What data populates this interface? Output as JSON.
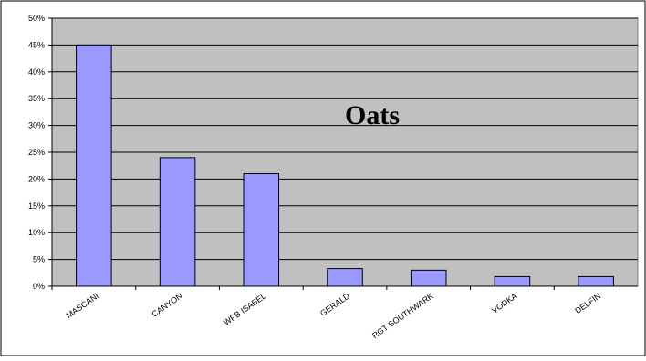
{
  "chart_data": {
    "type": "bar",
    "title": "Oats",
    "xlabel": "",
    "ylabel": "",
    "categories": [
      "MASCANI",
      "CANYON",
      "WPB ISABEL",
      "GERALD",
      "RGT SOUTHWARK",
      "VODKA",
      "DELFIN"
    ],
    "values": [
      45,
      24,
      21,
      3.3,
      3,
      1.8,
      1.8
    ],
    "ylim": [
      0,
      50
    ],
    "yticks": [
      "0%",
      "5%",
      "10%",
      "15%",
      "20%",
      "25%",
      "30%",
      "35%",
      "40%",
      "45%",
      "50%"
    ],
    "grid": true,
    "legend": "none",
    "colors": {
      "bar_fill": "#9999ff",
      "bar_stroke": "#000000",
      "plot_bg": "#c0c0c0",
      "gridline": "#000000"
    }
  }
}
